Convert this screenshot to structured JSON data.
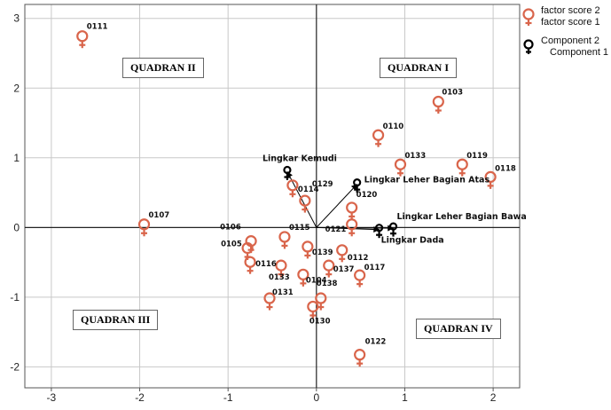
{
  "chart_data": {
    "type": "scatter",
    "title": "",
    "xlabel": "",
    "ylabel": "",
    "xlim": [
      -3.3,
      2.3
    ],
    "ylim": [
      -2.3,
      3.2
    ],
    "x_ticks": [
      "-3",
      "-2",
      "-1",
      "0",
      "1",
      "2"
    ],
    "y_ticks": [
      "3",
      "2",
      "1",
      "0",
      "-1",
      "-2"
    ],
    "grid": true,
    "quadrants": [
      {
        "id": "q1",
        "label": "QUADRAN I"
      },
      {
        "id": "q2",
        "label": "QUADRAN II"
      },
      {
        "id": "q3",
        "label": "QUADRAN III"
      },
      {
        "id": "q4",
        "label": "QUADRAN IV"
      }
    ],
    "legend": {
      "placement": "top-right",
      "entries": [
        {
          "line1": "factor score 2",
          "line2": "factor score 1",
          "color": "#d9654b",
          "marker": "female-symbol"
        },
        {
          "line1": "Component 2",
          "line2": "Component 1",
          "color": "#000000",
          "marker": "female-symbol"
        }
      ]
    },
    "scores": [
      {
        "label": "0111",
        "x": -2.65,
        "y": 2.72
      },
      {
        "label": "0103",
        "x": 1.38,
        "y": 1.78
      },
      {
        "label": "0110",
        "x": 0.7,
        "y": 1.3
      },
      {
        "label": "0133",
        "x": 0.95,
        "y": 0.88
      },
      {
        "label": "0119",
        "x": 1.65,
        "y": 0.88
      },
      {
        "label": "0118",
        "x": 1.97,
        "y": 0.7
      },
      {
        "label": "0114",
        "x": -0.27,
        "y": 0.58
      },
      {
        "label": "0129",
        "x": -0.13,
        "y": 0.36
      },
      {
        "label": "0120",
        "x": 0.4,
        "y": 0.26
      },
      {
        "label": "0107",
        "x": -1.95,
        "y": 0.02
      },
      {
        "label": "0121",
        "x": 0.4,
        "y": 0.02
      },
      {
        "label": "0106",
        "x": -0.74,
        "y": -0.22
      },
      {
        "label": "0115",
        "x": -0.36,
        "y": -0.16
      },
      {
        "label": "0105",
        "x": -0.78,
        "y": -0.32
      },
      {
        "label": "0116",
        "x": -0.75,
        "y": -0.52
      },
      {
        "label": "0139",
        "x": -0.1,
        "y": -0.3
      },
      {
        "label": "0112",
        "x": 0.29,
        "y": -0.35
      },
      {
        "label": "0137",
        "x": 0.14,
        "y": -0.57
      },
      {
        "label": "0117",
        "x": 0.49,
        "y": -0.71
      },
      {
        "label": "0133",
        "x": -0.4,
        "y": -0.57
      },
      {
        "label": "0131",
        "x": -0.53,
        "y": -1.04
      },
      {
        "label": "0104",
        "x": -0.15,
        "y": -0.7
      },
      {
        "label": "0138",
        "x": 0.05,
        "y": -1.04
      },
      {
        "label": "0130",
        "x": -0.04,
        "y": -1.16
      },
      {
        "label": "0122",
        "x": 0.49,
        "y": -1.85
      }
    ],
    "components": [
      {
        "label": "Lingkar Kemudi",
        "x": -0.33,
        "y": 0.8
      },
      {
        "label": "Lingkar Leher Bagian Atas",
        "x": 0.46,
        "y": 0.62
      },
      {
        "label": "Lingkar Leher Bagian Bawa",
        "x": 0.87,
        "y": -0.01
      },
      {
        "label": "Lingkar Dada",
        "x": 0.71,
        "y": -0.03
      }
    ]
  }
}
